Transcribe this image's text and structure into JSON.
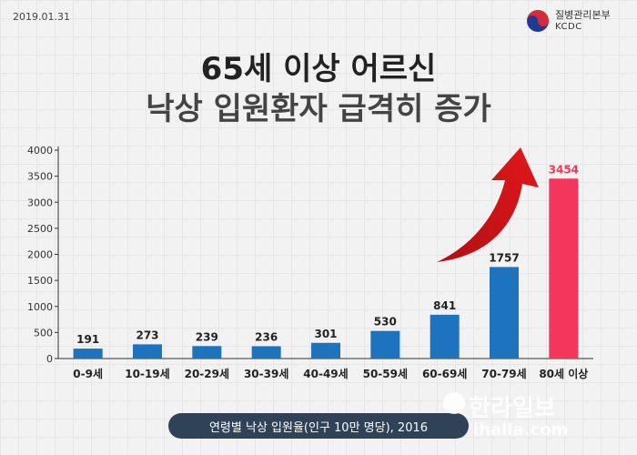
{
  "date": "2019.01.31",
  "logo": {
    "name_ko": "질병관리본부",
    "name_en": "KCDC"
  },
  "title": {
    "line1": "65세 이상 어르신",
    "line2": "낙상 입원환자 급격히 증가"
  },
  "footer": {
    "caption": "연령별 낙상 입원율(인구 10만 명당), 2016"
  },
  "watermark": {
    "ko": "한라일보",
    "en": "ihalla.com"
  },
  "colors": {
    "bar": "#1e73be",
    "highlight": "#f5365c",
    "arrow": "#e0181b",
    "axis": "#333333"
  },
  "chart_data": {
    "type": "bar",
    "title": "",
    "xlabel": "",
    "ylabel": "",
    "categories": [
      "0-9세",
      "10-19세",
      "20-29세",
      "30-39세",
      "40-49세",
      "50-59세",
      "60-69세",
      "70-79세",
      "80세 이상"
    ],
    "values": [
      191,
      273,
      239,
      236,
      301,
      530,
      841,
      1757,
      3454
    ],
    "highlight_index": 8,
    "ylim": [
      0,
      4000
    ],
    "yticks": [
      0,
      500,
      1000,
      1500,
      2000,
      2500,
      3000,
      3500,
      4000
    ],
    "grid": false,
    "legend": "none"
  }
}
